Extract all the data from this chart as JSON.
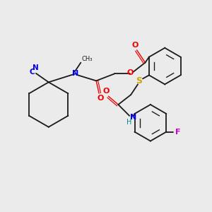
{
  "background_color": "#ebebeb",
  "bond_color": "#1a1a1a",
  "atom_colors": {
    "N": "#0000ee",
    "O": "#ee0000",
    "S": "#ccaa00",
    "F": "#cc00cc",
    "C_cyan": "#0000ee",
    "H": "#008888"
  },
  "figsize": [
    3.0,
    3.0
  ],
  "dpi": 100,
  "lw": 1.3,
  "lw_inner": 1.0,
  "font_size": 7.5
}
